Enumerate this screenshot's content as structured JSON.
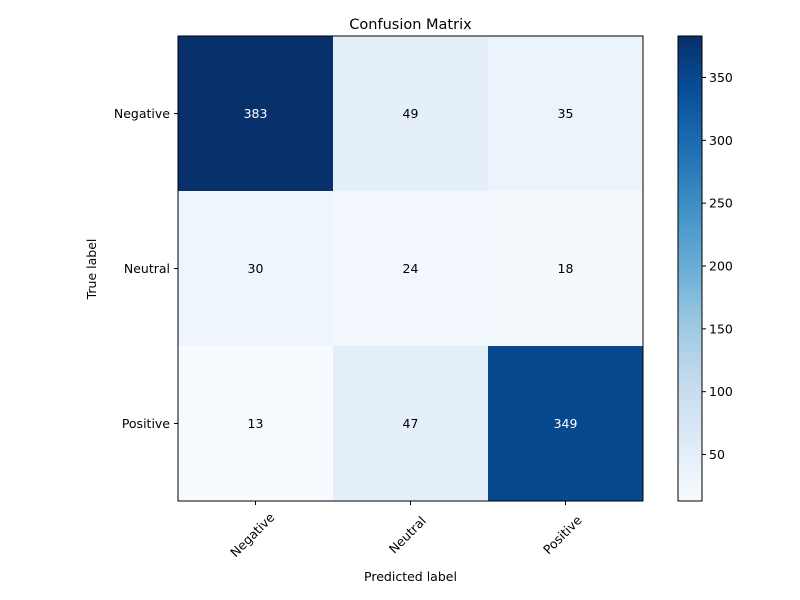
{
  "chart_data": {
    "type": "heatmap",
    "title": "Confusion Matrix",
    "xlabel": "Predicted label",
    "ylabel": "True label",
    "x_categories": [
      "Negative",
      "Neutral",
      "Positive"
    ],
    "y_categories": [
      "Negative",
      "Neutral",
      "Positive"
    ],
    "values": [
      [
        383,
        49,
        35
      ],
      [
        30,
        24,
        18
      ],
      [
        13,
        47,
        349
      ]
    ],
    "colormap": "Blues",
    "colorbar": {
      "ticks": [
        "50",
        "100",
        "150",
        "200",
        "250",
        "300",
        "350"
      ],
      "tick_values": [
        50,
        100,
        150,
        200,
        250,
        300,
        350
      ],
      "range": [
        13,
        383
      ]
    },
    "colors": {
      "low": "#f7fbff",
      "high": "#08306b",
      "text_dark_cell": "#ffffff",
      "text_light_cell": "#000000"
    },
    "grid": false,
    "legend": "colorbar-right"
  }
}
